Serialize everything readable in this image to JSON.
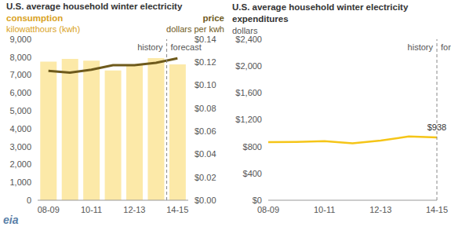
{
  "chart_data": [
    {
      "type": "bar",
      "title": "U.S. average household winter electricity",
      "y_label": "kilowatthours (kwh)",
      "y2_label": "dollars per kwh",
      "categories": [
        "08-09",
        null,
        "10-11",
        null,
        "12-13",
        null,
        "14-15"
      ],
      "series": [
        {
          "name": "consumption",
          "type": "bar",
          "color": "#fce9a8",
          "values": [
            7750,
            7900,
            7800,
            7250,
            7600,
            7950,
            7600
          ]
        },
        {
          "name": "price",
          "type": "line",
          "axis": "y2",
          "color": "#6e5a1c",
          "values": [
            0.1125,
            0.111,
            0.1135,
            0.1175,
            0.1175,
            0.1195,
            0.1235
          ]
        }
      ],
      "ylim": [
        0,
        9000
      ],
      "yticks": [
        0,
        {
          "value": 1000,
          "label": "1,000"
        },
        {
          "value": 2000,
          "label": "2,000"
        },
        {
          "value": 3000,
          "label": "3,000"
        },
        {
          "value": 4000,
          "label": "4,000"
        },
        {
          "value": 5000,
          "label": "5,000"
        },
        {
          "value": 6000,
          "label": "6,000"
        },
        {
          "value": 7000,
          "label": "7,000"
        },
        {
          "value": 8000,
          "label": "8,000"
        },
        {
          "value": 9000,
          "label": "9,000"
        }
      ],
      "y2lim": [
        0,
        0.14
      ],
      "y2ticks": [
        {
          "value": 0,
          "label": "$0.00"
        },
        {
          "value": 0.02,
          "label": "$0.02"
        },
        {
          "value": 0.04,
          "label": "$0.04"
        },
        {
          "value": 0.06,
          "label": "$0.06"
        },
        {
          "value": 0.08,
          "label": "$0.08"
        },
        {
          "value": 0.1,
          "label": "$0.10"
        },
        {
          "value": 0.12,
          "label": "$0.12"
        },
        {
          "value": 0.14,
          "label": "$0.14"
        }
      ],
      "annotations": [
        "history",
        "forecast"
      ],
      "grid": false,
      "logo": "eia"
    },
    {
      "type": "line",
      "title": "U.S. average household winter electricity expenditures",
      "y_label": "dollars",
      "categories": [
        "08-09",
        null,
        "10-11",
        null,
        "12-13",
        null,
        "14-15"
      ],
      "values": [
        865,
        868,
        880,
        850,
        890,
        950,
        938
      ],
      "value_labels": [
        null,
        null,
        null,
        null,
        null,
        null,
        "$938"
      ],
      "color": "#f5c518",
      "ylim": [
        0,
        2400
      ],
      "yticks": [
        {
          "value": 0,
          "label": "$0"
        },
        {
          "value": 400,
          "label": "$400"
        },
        {
          "value": 800,
          "label": "$800"
        },
        {
          "value": 1200,
          "label": "$1,200"
        },
        {
          "value": 1600,
          "label": "$1,600"
        },
        {
          "value": 2000,
          "label": "$2,000"
        },
        {
          "value": 2400,
          "label": "$2,400"
        }
      ],
      "annotations": [
        "history",
        "forecast"
      ],
      "grid": false
    }
  ]
}
